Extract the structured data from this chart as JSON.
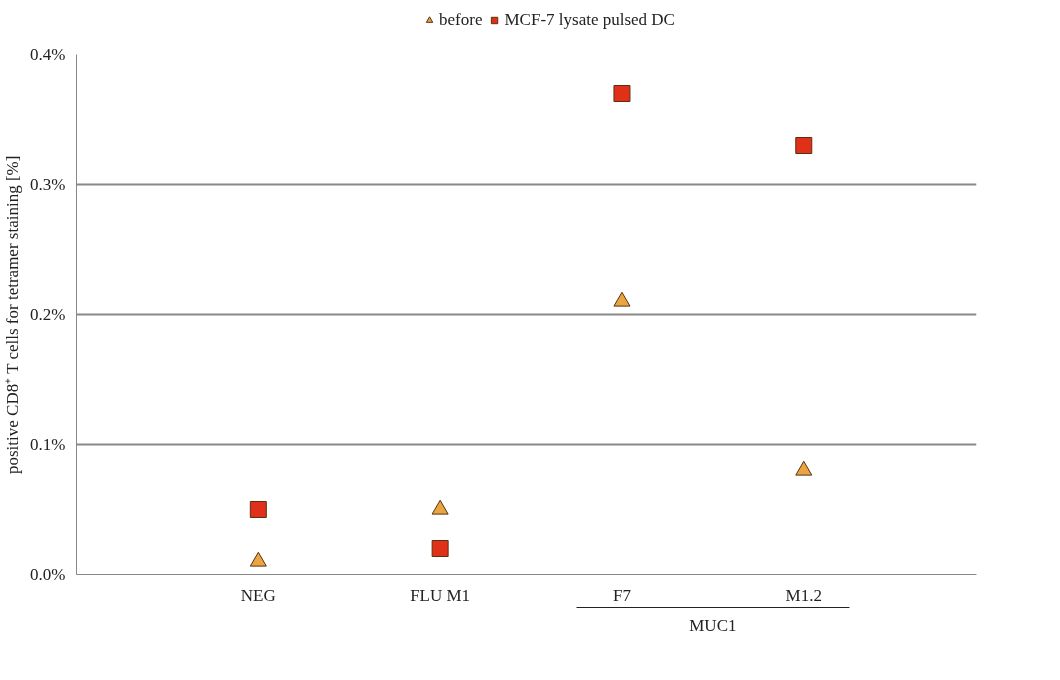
{
  "chart_data": {
    "type": "scatter",
    "ylabel": "positive CD8⁺ T cells for tetramer staining [%]",
    "categories": [
      "NEG",
      "FLU M1",
      "F7",
      "M1.2"
    ],
    "series": [
      {
        "name": "before",
        "color": "#e8a540",
        "marker": "triangle",
        "values": [
          0.01,
          0.05,
          0.21,
          0.08
        ]
      },
      {
        "name": "MCF-7 lysate pulsed DC",
        "color": "#e0301a",
        "marker": "square",
        "values": [
          0.05,
          0.02,
          0.37,
          0.33
        ]
      }
    ],
    "ylim": [
      0,
      0.4
    ],
    "yticks": [
      {
        "value": 0,
        "label": "0.0%"
      },
      {
        "value": 0.1,
        "label": "0.1%"
      },
      {
        "value": 0.2,
        "label": "0.2%"
      },
      {
        "value": 0.3,
        "label": "0.3%"
      },
      {
        "value": 0.4,
        "label": "0.4%"
      }
    ],
    "annotations": [
      "MUC1"
    ],
    "grid": "y",
    "legend": "top"
  }
}
